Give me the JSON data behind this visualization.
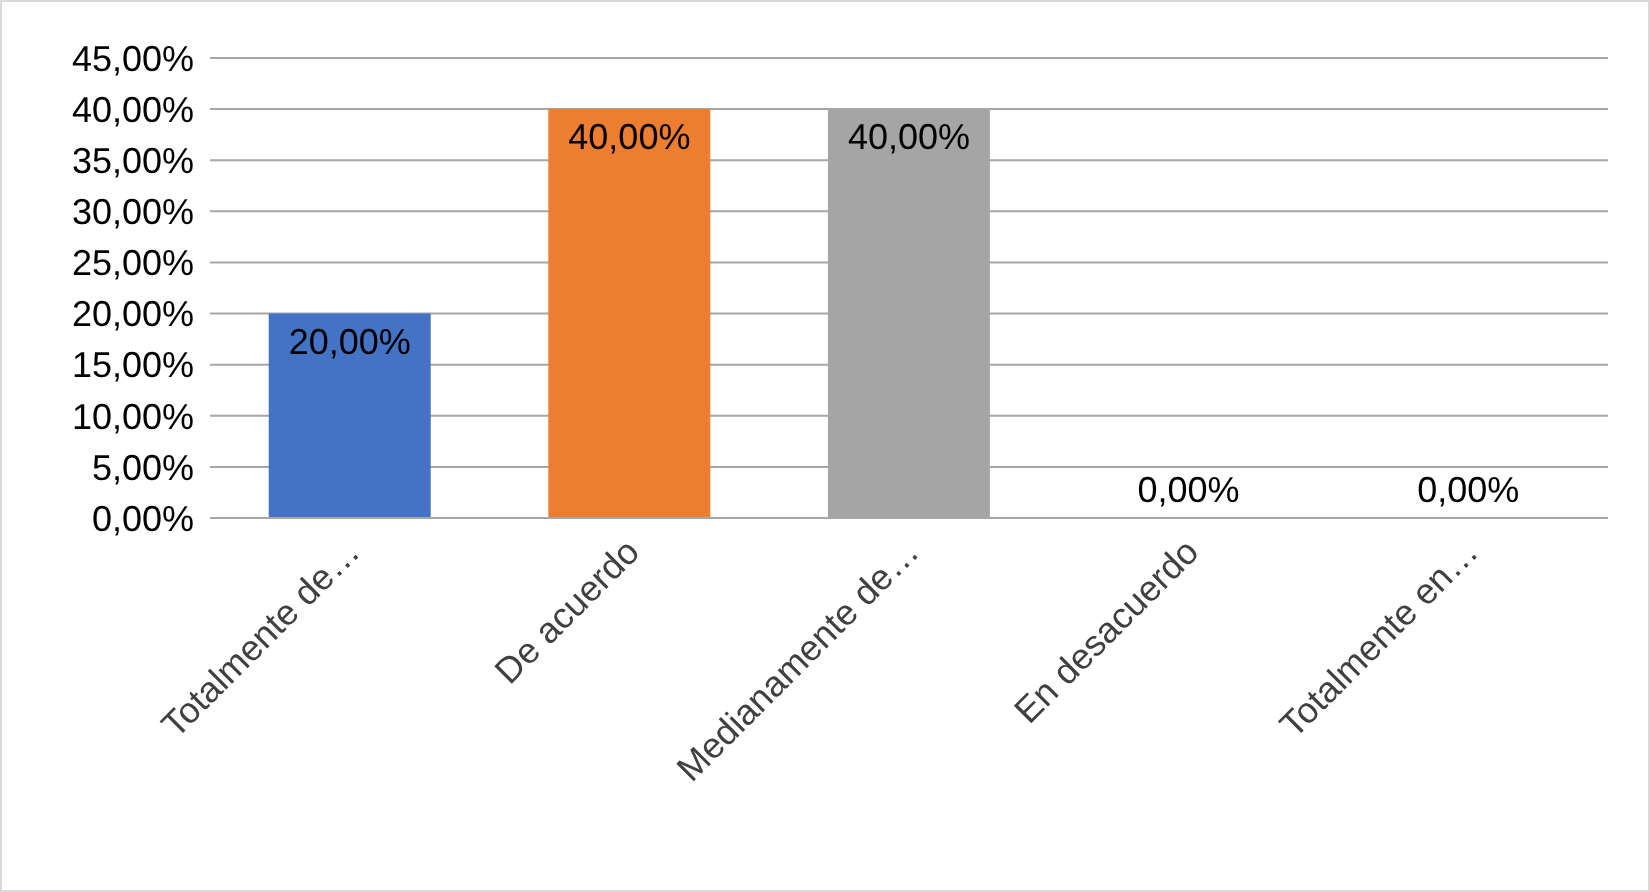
{
  "chart_data": {
    "type": "bar",
    "categories": [
      "Totalmente de…",
      "De acuerdo",
      "Medianamente de…",
      "En desacuerdo",
      "Totalmente en…"
    ],
    "values": [
      20,
      40,
      40,
      0,
      0
    ],
    "colors": [
      "#4472c4",
      "#ed7d31",
      "#a5a5a5",
      "#ffc000",
      "#5b9bd5"
    ],
    "value_labels": [
      "20,00%",
      "40,00%",
      "40,00%",
      "0,00%",
      "0,00%"
    ],
    "ylim": [
      0,
      45
    ],
    "yticks": [
      {
        "value": 0,
        "label": "0,00%"
      },
      {
        "value": 5,
        "label": "5,00%"
      },
      {
        "value": 10,
        "label": "10,00%"
      },
      {
        "value": 15,
        "label": "15,00%"
      },
      {
        "value": 20,
        "label": "20,00%"
      },
      {
        "value": 25,
        "label": "25,00%"
      },
      {
        "value": 30,
        "label": "30,00%"
      },
      {
        "value": 35,
        "label": "35,00%"
      },
      {
        "value": 40,
        "label": "40,00%"
      },
      {
        "value": 45,
        "label": "45,00%"
      }
    ],
    "grid": "y"
  }
}
